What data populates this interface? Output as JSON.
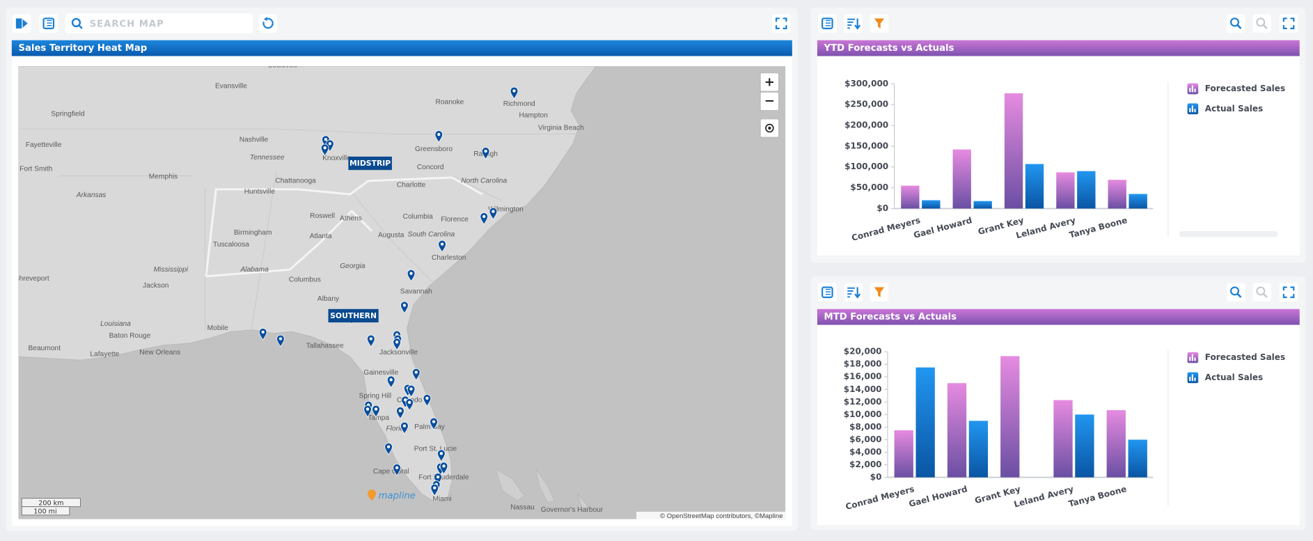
{
  "toolbar": {
    "search_placeholder": "SEARCH MAP"
  },
  "map": {
    "title": "Sales Territory Heat Map",
    "cities": [
      "Louisville",
      "Evansville",
      "Springfield",
      "Roanoke",
      "Richmond",
      "Hampton",
      "Virginia Beach",
      "Nashville",
      "Tennessee",
      "Knoxville",
      "Greensboro",
      "Raleigh",
      "Fayetteville",
      "Fort Smith",
      "Memphis",
      "Chattanooga",
      "Concord",
      "North Carolina",
      "Charlotte",
      "Huntsville",
      "Arkansas",
      "Roswell",
      "Athens",
      "Columbia",
      "Florence",
      "Wilmington",
      "Birmingham",
      "Atlanta",
      "Augusta",
      "South Carolina",
      "Tuscaloosa",
      "Charleston",
      "Georgia",
      "Mississippi",
      "Alabama",
      "Shreveport",
      "Jackson",
      "Columbus",
      "Savannah",
      "Albany",
      "Louisiana",
      "Mobile",
      "Baton Rouge",
      "Tallahassee",
      "Beaumont",
      "New Orleans",
      "Lafayette",
      "Jacksonville",
      "Gainesville",
      "Spring Hill",
      "Orlando",
      "Tampa",
      "Palm Bay",
      "Florida",
      "Port St. Lucie",
      "Cape Coral",
      "Fort Lauderdale",
      "Miami",
      "Nassau",
      "Governor's Harbour"
    ],
    "regions": [
      "MIDSTRIP",
      "SOUTHERN"
    ],
    "zoom_in": "+",
    "zoom_out": "−",
    "scale_km": "200 km",
    "scale_mi": "100 mi",
    "logo": "mapline",
    "attribution": "© OpenStreetMap contributors, ©Mapline"
  },
  "chart_data": [
    {
      "type": "bar",
      "title": "YTD Forecasts vs Actuals",
      "categories": [
        "Conrad Meyers",
        "Gael Howard",
        "Grant Key",
        "Leland Avery",
        "Tanya Boone"
      ],
      "series": [
        {
          "name": "Forecasted Sales",
          "color": "#e68be0",
          "values": [
            55000,
            142000,
            277000,
            87000,
            69000
          ]
        },
        {
          "name": "Actual Sales",
          "color": "#2196f0",
          "values": [
            20000,
            18000,
            107000,
            90000,
            35000
          ]
        }
      ],
      "ylim": [
        0,
        300000
      ],
      "yticks": [
        {
          "value": 0,
          "label": "$0"
        },
        {
          "value": 50000,
          "label": "$50,000"
        },
        {
          "value": 100000,
          "label": "$100,000"
        },
        {
          "value": 150000,
          "label": "$150,000"
        },
        {
          "value": 200000,
          "label": "$200,000"
        },
        {
          "value": 250000,
          "label": "$250,000"
        },
        {
          "value": 300000,
          "label": "$300,000"
        }
      ],
      "grid": false,
      "legend": "right"
    },
    {
      "type": "bar",
      "title": "MTD Forecasts vs Actuals",
      "categories": [
        "Conrad Meyers",
        "Gael Howard",
        "Grant Key",
        "Leland Avery",
        "Tanya Boone"
      ],
      "series": [
        {
          "name": "Forecasted Sales",
          "color": "#e68be0",
          "values": [
            7500,
            15000,
            19300,
            12300,
            10700
          ]
        },
        {
          "name": "Actual Sales",
          "color": "#2196f0",
          "values": [
            17500,
            9000,
            null,
            10000,
            6000
          ]
        }
      ],
      "ylim": [
        0,
        20000
      ],
      "yticks": [
        {
          "value": 0,
          "label": "$0"
        },
        {
          "value": 2000,
          "label": "$2,000"
        },
        {
          "value": 4000,
          "label": "$4,000"
        },
        {
          "value": 6000,
          "label": "$6,000"
        },
        {
          "value": 8000,
          "label": "$8,000"
        },
        {
          "value": 10000,
          "label": "$10,000"
        },
        {
          "value": 12000,
          "label": "$12,000"
        },
        {
          "value": 14000,
          "label": "$14,000"
        },
        {
          "value": 16000,
          "label": "$16,000"
        },
        {
          "value": 18000,
          "label": "$18,000"
        },
        {
          "value": 20000,
          "label": "$20,000"
        }
      ],
      "grid": false,
      "legend": "right"
    }
  ]
}
